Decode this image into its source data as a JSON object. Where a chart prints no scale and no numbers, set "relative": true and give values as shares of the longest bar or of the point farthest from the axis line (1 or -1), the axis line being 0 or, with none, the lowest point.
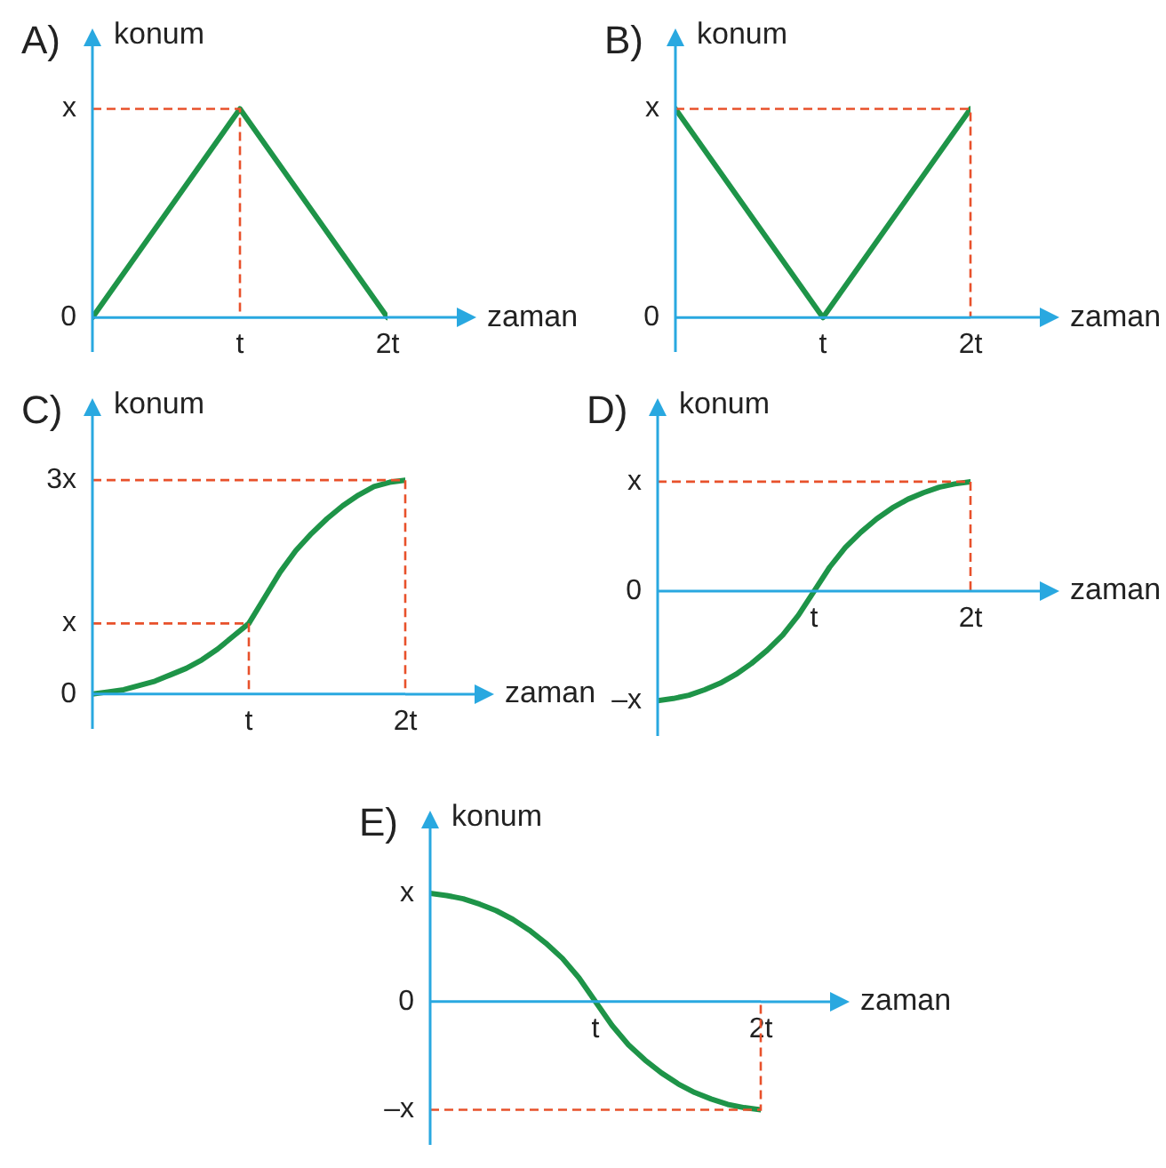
{
  "chart_data": [
    {
      "type": "line",
      "title": "A)",
      "xlabel": "zaman",
      "ylabel": "konum",
      "relative": true,
      "marker": "none",
      "categories": [
        null,
        "t",
        "2t"
      ],
      "series": [
        {
          "color": "#1e9448",
          "values": [
            0,
            1,
            0
          ]
        }
      ],
      "ref_lines": [
        {
          "axis": "y",
          "value": 1,
          "label": "x",
          "color": "#e8512b",
          "line_style": "dashed"
        }
      ],
      "annotations": [
        "0"
      ]
    },
    {
      "type": "line",
      "title": "B)",
      "xlabel": "zaman",
      "ylabel": "konum",
      "relative": true,
      "marker": "none",
      "categories": [
        null,
        "t",
        "2t"
      ],
      "series": [
        {
          "color": "#1e9448",
          "values": [
            1,
            0,
            1
          ]
        }
      ],
      "ref_lines": [
        {
          "axis": "y",
          "value": 1,
          "label": "x",
          "color": "#e8512b",
          "line_style": "dashed"
        }
      ],
      "annotations": [
        "0"
      ]
    },
    {
      "type": "line",
      "title": "C)",
      "xlabel": "zaman",
      "ylabel": "konum",
      "relative": true,
      "marker": "none",
      "categories": [
        null,
        null,
        null,
        null,
        null,
        null,
        null,
        null,
        null,
        null,
        "t",
        null,
        null,
        null,
        null,
        null,
        null,
        null,
        null,
        null,
        "2t"
      ],
      "series": [
        {
          "color": "#1e9448",
          "values": [
            0,
            0.01,
            0.02,
            0.04,
            0.06,
            0.09,
            0.12,
            0.16,
            0.21,
            0.27,
            0.33,
            0.45,
            0.57,
            0.67,
            0.75,
            0.82,
            0.88,
            0.93,
            0.97,
            0.99,
            1
          ]
        }
      ],
      "ref_lines": [
        {
          "axis": "y",
          "value": 1,
          "label": "3x",
          "color": "#e8512b",
          "line_style": "dashed"
        },
        {
          "axis": "y",
          "value": 0.33,
          "label": "x",
          "color": "#e8512b",
          "line_style": "dashed"
        }
      ],
      "annotations": [
        "0"
      ]
    },
    {
      "type": "line",
      "title": "D)",
      "xlabel": "zaman",
      "ylabel": "konum",
      "relative": true,
      "marker": "none",
      "categories": [
        null,
        null,
        null,
        null,
        null,
        null,
        null,
        null,
        null,
        null,
        "t",
        null,
        null,
        null,
        null,
        null,
        null,
        null,
        null,
        null,
        "2t"
      ],
      "series": [
        {
          "color": "#1e9448",
          "values": [
            -1,
            -0.98,
            -0.95,
            -0.9,
            -0.84,
            -0.76,
            -0.66,
            -0.54,
            -0.4,
            -0.22,
            0,
            0.22,
            0.4,
            0.54,
            0.66,
            0.76,
            0.84,
            0.9,
            0.95,
            0.98,
            1
          ]
        }
      ],
      "ref_lines": [
        {
          "axis": "y",
          "value": 1,
          "label": "x",
          "color": "#e8512b",
          "line_style": "dashed"
        }
      ],
      "annotations": [
        "0",
        "–x"
      ]
    },
    {
      "type": "line",
      "title": "E)",
      "xlabel": "zaman",
      "ylabel": "konum",
      "relative": true,
      "marker": "none",
      "categories": [
        null,
        null,
        null,
        null,
        null,
        null,
        null,
        null,
        null,
        null,
        "t",
        null,
        null,
        null,
        null,
        null,
        null,
        null,
        null,
        null,
        "2t"
      ],
      "series": [
        {
          "color": "#1e9448",
          "values": [
            1,
            0.98,
            0.95,
            0.9,
            0.84,
            0.76,
            0.66,
            0.54,
            0.4,
            0.22,
            0,
            -0.22,
            -0.4,
            -0.54,
            -0.66,
            -0.76,
            -0.84,
            -0.9,
            -0.95,
            -0.98,
            -1
          ]
        }
      ],
      "ref_lines": [
        {
          "axis": "y",
          "value": -1,
          "label": "–x",
          "color": "#e8512b",
          "line_style": "dashed"
        }
      ],
      "annotations": [
        "0",
        "x"
      ]
    }
  ]
}
